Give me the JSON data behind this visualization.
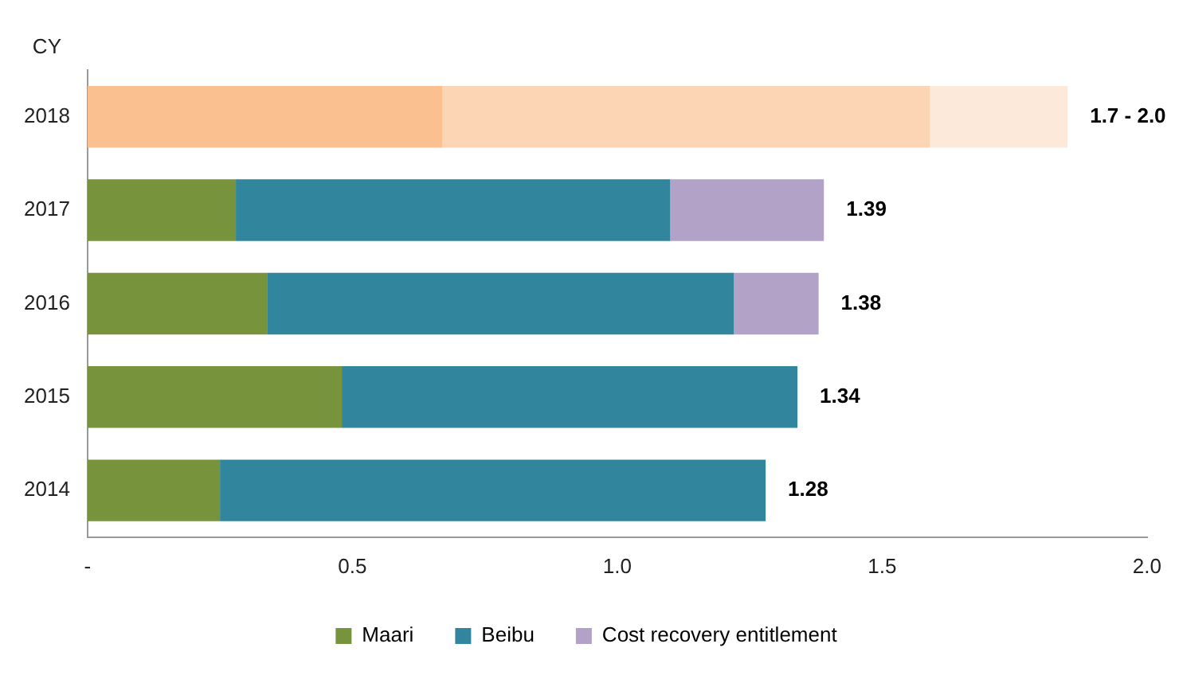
{
  "chart_data": {
    "type": "bar",
    "orientation": "horizontal",
    "stacked": true,
    "ylabel": "CY",
    "categories": [
      "2018",
      "2017",
      "2016",
      "2015",
      "2014"
    ],
    "series": [
      {
        "name": "Maari",
        "color": "#77933c",
        "colors": [
          "#fac090",
          "#77933c",
          "#77933c",
          "#77933c",
          "#77933c"
        ],
        "values": [
          0.67,
          0.28,
          0.34,
          0.48,
          0.25
        ]
      },
      {
        "name": "Beibu",
        "color": "#31859c",
        "colors": [
          "#fcd5b5",
          "#31859c",
          "#31859c",
          "#31859c",
          "#31859c"
        ],
        "values": [
          0.92,
          0.82,
          0.88,
          0.86,
          1.03
        ]
      },
      {
        "name": "Cost recovery entitlement",
        "color": "#b3a2c7",
        "values": [
          null,
          0.29,
          0.16,
          null,
          null
        ]
      },
      {
        "color": "#fde9d9",
        "values": [
          0.26,
          null,
          null,
          null,
          null
        ]
      }
    ],
    "totals": [
      "1.7 - 2.0",
      "1.39",
      "1.38",
      "1.34",
      "1.28"
    ],
    "xlim": [
      0,
      2
    ],
    "xticks": [
      {
        "value": 0,
        "label": "-"
      },
      0.5,
      {
        "value": 1,
        "label": "1.0"
      },
      1.5,
      {
        "value": 2,
        "label": "2.0"
      }
    ],
    "grid": false,
    "legend": "bottom"
  }
}
